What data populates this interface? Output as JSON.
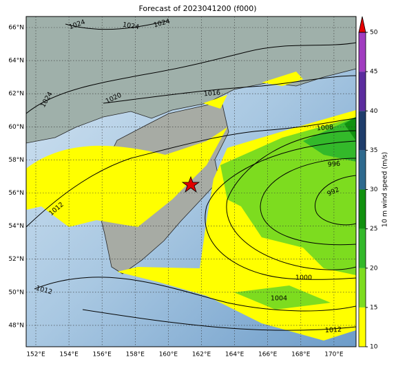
{
  "map": {
    "title": "Forecast of 2023041200 (f000)",
    "lat_ticks": [
      {
        "value": 66,
        "label": "66°N"
      },
      {
        "value": 64,
        "label": "64°N"
      },
      {
        "value": 62,
        "label": "62°N"
      },
      {
        "value": 60,
        "label": "60°N"
      },
      {
        "value": 58,
        "label": "58°N"
      },
      {
        "value": 56,
        "label": "56°N"
      },
      {
        "value": 54,
        "label": "54°N"
      },
      {
        "value": 52,
        "label": "52°N"
      },
      {
        "value": 50,
        "label": "50°N"
      },
      {
        "value": 48,
        "label": "48°N"
      }
    ],
    "lon_ticks": [
      {
        "value": 152,
        "label": "152°E"
      },
      {
        "value": 154,
        "label": "154°E"
      },
      {
        "value": 156,
        "label": "156°E"
      },
      {
        "value": 158,
        "label": "158°E"
      },
      {
        "value": 160,
        "label": "160°E"
      },
      {
        "value": 162,
        "label": "162°E"
      },
      {
        "value": 164,
        "label": "164°E"
      },
      {
        "value": 166,
        "label": "166°E"
      },
      {
        "value": 168,
        "label": "168°E"
      },
      {
        "value": 170,
        "label": "170°E"
      }
    ],
    "isobar_labels": [
      1024,
      1024,
      1024,
      1024,
      1020,
      1016,
      1008,
      996,
      992,
      1012,
      1012,
      1000,
      1004,
      1012
    ],
    "colorbar": {
      "label": "10 m wind speed (m/s)",
      "ticks": [
        10,
        15,
        20,
        25,
        30,
        35,
        40,
        45,
        50
      ],
      "colors": [
        "#ffff00",
        "#7ddc1f",
        "#33b92a",
        "#11910f",
        "#2e6a8e",
        "#1e3d6b",
        "#5b2c9e",
        "#a13cc0"
      ],
      "extend_color": "#e60000"
    }
  }
}
